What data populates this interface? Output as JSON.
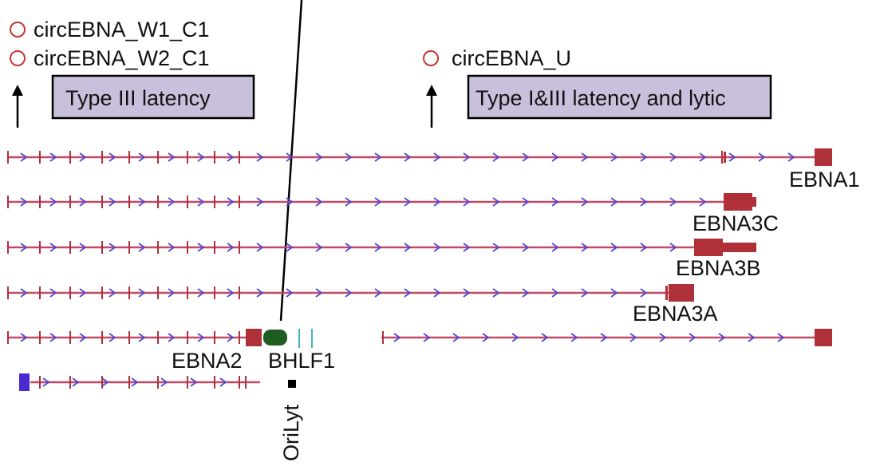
{
  "legend": {
    "items": [
      {
        "id": "w1",
        "label": "circEBNA_W1_C1"
      },
      {
        "id": "w2",
        "label": "circEBNA_W2_C1"
      },
      {
        "id": "u",
        "label": "circEBNA_U"
      }
    ]
  },
  "boxes": {
    "left": "Type III latency",
    "right": "Type I&III latency and lytic"
  },
  "genes": {
    "ebna1": "EBNA1",
    "ebna3c": "EBNA3C",
    "ebna3b": "EBNA3B",
    "ebna3a": "EBNA3A",
    "ebna2": "EBNA2",
    "bhlf1": "BHLF1",
    "orilyt": "OriLyt"
  },
  "colors": {
    "circle": "#c8362e",
    "box_fill": "#c9c0dc",
    "track": "#c34a66",
    "chevron": "#4a4ad6",
    "exon": "#b0303a",
    "bhlf1": "#1f5c1f",
    "cyan_marks": "#3cb8c0",
    "purple_exon": "#4a2ad0"
  }
}
